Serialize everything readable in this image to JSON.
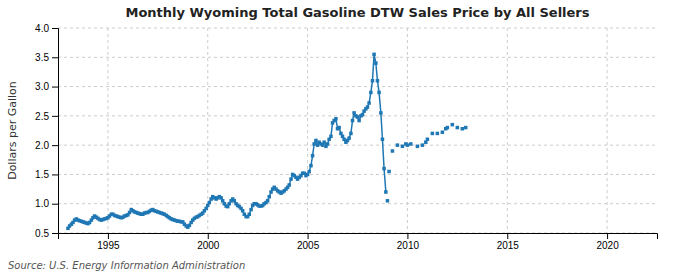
{
  "chart_data": {
    "type": "line",
    "title": "Monthly Wyoming Total Gasoline DTW Sales Price by All Sellers",
    "ylabel": "Dollars per Gallon",
    "annotations": [
      "Source: U.S. Energy Information Administration"
    ],
    "xlim": [
      1992.5,
      2022.5
    ],
    "ylim": [
      0.5,
      4.0
    ],
    "xticks": [
      1995,
      2000,
      2005,
      2010,
      2015,
      2020
    ],
    "yticks": [
      0.5,
      {
        "value": 1.0,
        "label": "1.0"
      },
      1.5,
      {
        "value": 2.0,
        "label": "2.0"
      },
      2.5,
      {
        "value": 3.0,
        "label": "3.0"
      },
      3.5,
      {
        "value": 4.0,
        "label": "4.0"
      }
    ],
    "grid": true,
    "series": [
      {
        "type": "line",
        "marker": "square",
        "x": [
          1993.0,
          1993.08,
          1993.17,
          1993.25,
          1993.33,
          1993.42,
          1993.5,
          1993.58,
          1993.67,
          1993.75,
          1993.83,
          1993.92,
          1994.0,
          1994.08,
          1994.17,
          1994.25,
          1994.33,
          1994.42,
          1994.5,
          1994.58,
          1994.67,
          1994.75,
          1994.83,
          1994.92,
          1995.0,
          1995.08,
          1995.17,
          1995.25,
          1995.33,
          1995.42,
          1995.5,
          1995.58,
          1995.67,
          1995.75,
          1995.83,
          1995.92,
          1996.0,
          1996.08,
          1996.17,
          1996.25,
          1996.33,
          1996.42,
          1996.5,
          1996.58,
          1996.67,
          1996.75,
          1996.83,
          1996.92,
          1997.0,
          1997.08,
          1997.17,
          1997.25,
          1997.33,
          1997.42,
          1997.5,
          1997.58,
          1997.67,
          1997.75,
          1997.83,
          1997.92,
          1998.0,
          1998.08,
          1998.17,
          1998.25,
          1998.33,
          1998.42,
          1998.5,
          1998.58,
          1998.67,
          1998.75,
          1998.83,
          1998.92,
          1999.0,
          1999.08,
          1999.17,
          1999.25,
          1999.33,
          1999.42,
          1999.5,
          1999.58,
          1999.67,
          1999.75,
          1999.83,
          1999.92,
          2000.0,
          2000.08,
          2000.17,
          2000.25,
          2000.33,
          2000.42,
          2000.5,
          2000.58,
          2000.67,
          2000.75,
          2000.83,
          2000.92,
          2001.0,
          2001.08,
          2001.17,
          2001.25,
          2001.33,
          2001.42,
          2001.5,
          2001.58,
          2001.67,
          2001.75,
          2001.83,
          2001.92,
          2002.0,
          2002.08,
          2002.17,
          2002.25,
          2002.33,
          2002.42,
          2002.5,
          2002.58,
          2002.67,
          2002.75,
          2002.83,
          2002.92,
          2003.0,
          2003.08,
          2003.17,
          2003.25,
          2003.33,
          2003.42,
          2003.5,
          2003.58,
          2003.67,
          2003.75,
          2003.83,
          2003.92,
          2004.0,
          2004.08,
          2004.17,
          2004.25,
          2004.33,
          2004.42,
          2004.5,
          2004.58,
          2004.67,
          2004.75,
          2004.83,
          2004.92,
          2005.0,
          2005.08,
          2005.17,
          2005.25,
          2005.33,
          2005.42,
          2005.5,
          2005.58,
          2005.67,
          2005.75,
          2005.83,
          2005.92,
          2006.0,
          2006.08,
          2006.17,
          2006.25,
          2006.33,
          2006.42,
          2006.5,
          2006.58,
          2006.67,
          2006.75,
          2006.83,
          2006.92,
          2007.0,
          2007.08,
          2007.17,
          2007.25,
          2007.33,
          2007.42,
          2007.5,
          2007.58,
          2007.67,
          2007.75,
          2007.83,
          2007.92,
          2008.0,
          2008.08,
          2008.17,
          2008.25,
          2008.33,
          2008.42,
          2008.5,
          2008.58,
          2008.67,
          2008.75,
          2008.83,
          2008.92
        ],
        "values": [
          0.58,
          0.62,
          0.65,
          0.68,
          0.72,
          0.74,
          0.72,
          0.71,
          0.7,
          0.69,
          0.68,
          0.67,
          0.66,
          0.68,
          0.72,
          0.76,
          0.79,
          0.77,
          0.75,
          0.73,
          0.72,
          0.73,
          0.74,
          0.75,
          0.76,
          0.79,
          0.82,
          0.82,
          0.8,
          0.79,
          0.78,
          0.77,
          0.76,
          0.77,
          0.79,
          0.8,
          0.81,
          0.85,
          0.9,
          0.88,
          0.86,
          0.85,
          0.84,
          0.83,
          0.82,
          0.82,
          0.84,
          0.85,
          0.85,
          0.87,
          0.89,
          0.9,
          0.88,
          0.87,
          0.86,
          0.85,
          0.84,
          0.83,
          0.82,
          0.8,
          0.78,
          0.76,
          0.74,
          0.73,
          0.72,
          0.71,
          0.7,
          0.7,
          0.69,
          0.69,
          0.65,
          0.62,
          0.6,
          0.63,
          0.68,
          0.72,
          0.75,
          0.77,
          0.78,
          0.8,
          0.82,
          0.84,
          0.88,
          0.92,
          0.97,
          1.02,
          1.08,
          1.12,
          1.1,
          1.08,
          1.1,
          1.12,
          1.1,
          1.05,
          1.0,
          0.96,
          0.95,
          1.0,
          1.05,
          1.08,
          1.05,
          1.0,
          0.97,
          0.95,
          0.92,
          0.88,
          0.82,
          0.78,
          0.78,
          0.82,
          0.9,
          0.97,
          1.0,
          1.0,
          0.98,
          0.96,
          0.96,
          0.97,
          1.0,
          1.02,
          1.05,
          1.12,
          1.2,
          1.25,
          1.28,
          1.25,
          1.22,
          1.2,
          1.18,
          1.2,
          1.22,
          1.25,
          1.28,
          1.32,
          1.42,
          1.5,
          1.48,
          1.45,
          1.42,
          1.45,
          1.48,
          1.52,
          1.52,
          1.48,
          1.5,
          1.55,
          1.65,
          1.82,
          2.02,
          2.08,
          2.0,
          2.05,
          2.02,
          2.0,
          2.05,
          1.98,
          2.02,
          2.1,
          2.15,
          2.38,
          2.42,
          2.45,
          2.28,
          2.3,
          2.2,
          2.15,
          2.1,
          2.05,
          2.08,
          2.12,
          2.2,
          2.42,
          2.55,
          2.5,
          2.48,
          2.42,
          2.5,
          2.52,
          2.58,
          2.62,
          2.65,
          2.72,
          2.9,
          3.1,
          3.55,
          3.4,
          3.1,
          2.9,
          2.55,
          2.1,
          1.6,
          1.2
        ]
      },
      {
        "type": "scatter",
        "marker": "square",
        "x": [
          2009.0,
          2009.08,
          2009.25,
          2009.5,
          2009.75,
          2009.92,
          2010.0,
          2010.17,
          2010.5,
          2010.75,
          2010.92,
          2011.0,
          2011.25,
          2011.5,
          2011.75,
          2011.92,
          2012.0,
          2012.25,
          2012.5,
          2012.75,
          2012.92
        ],
        "values": [
          1.05,
          1.55,
          1.9,
          2.0,
          1.98,
          2.02,
          2.0,
          2.02,
          1.98,
          2.0,
          2.05,
          2.1,
          2.2,
          2.2,
          2.22,
          2.28,
          2.3,
          2.35,
          2.3,
          2.28,
          2.3
        ]
      }
    ]
  }
}
